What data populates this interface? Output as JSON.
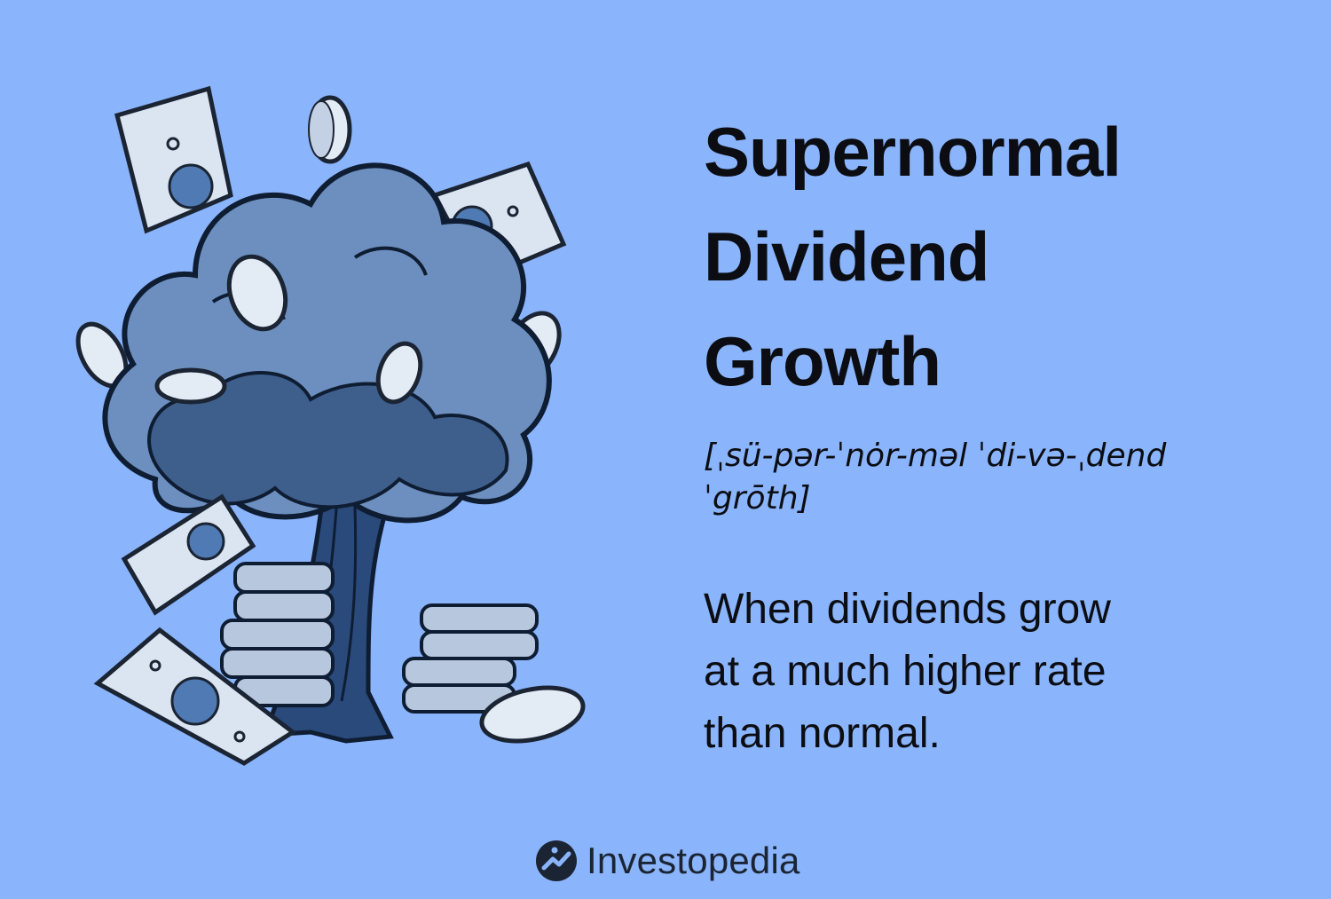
{
  "term": {
    "title_lines": [
      "Supernormal",
      "Dividend",
      "Growth"
    ],
    "pronunciation": "[ˌsü-pər-ˈnȯr-məl ˈdi-və-ˌdend ˈgrōth]"
  },
  "definition": {
    "lines": [
      "When dividends grow",
      "at a much higher rate",
      "than normal."
    ]
  },
  "brand": {
    "name": "Investopedia",
    "icon": "investopedia-logo-icon"
  },
  "illustration": {
    "subject": "money-tree-with-bills-and-coins-icon"
  },
  "colors": {
    "background": "#8ab4fb",
    "tree_dark": "#3e5f8c",
    "tree_light": "#6c8fbf",
    "bill": "#dbe5f2",
    "coin": "#e3ebf5",
    "text": "#0b0d12"
  }
}
